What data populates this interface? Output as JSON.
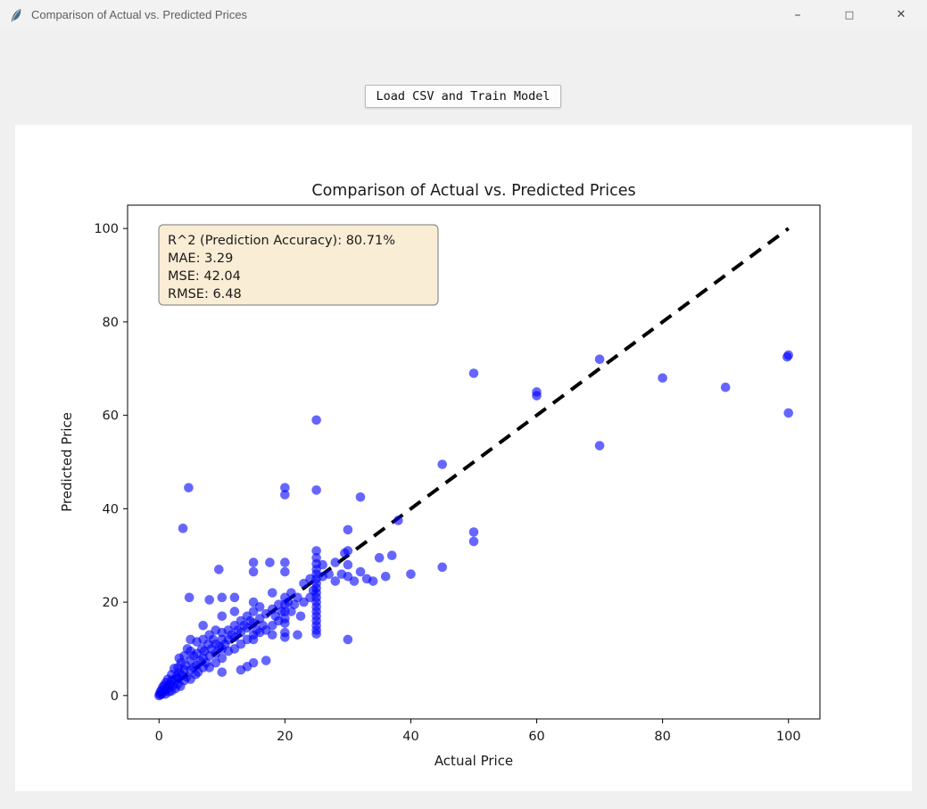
{
  "window": {
    "title": "Comparison of Actual vs. Predicted Prices",
    "controls": {
      "minimize": "–",
      "maximize": "□",
      "close": "✕"
    }
  },
  "toolbar": {
    "load_button_label": "Load CSV and Train Model"
  },
  "metrics": {
    "r2_percent": 80.71,
    "mae": 3.29,
    "mse": 42.04,
    "rmse": 6.48
  },
  "chart_data": {
    "type": "scatter",
    "title": "Comparison of Actual vs. Predicted Prices",
    "xlabel": "Actual Price",
    "ylabel": "Predicted Price",
    "xlim": [
      -5,
      105
    ],
    "ylim": [
      -5,
      105
    ],
    "xticks": [
      0,
      20,
      40,
      60,
      80,
      100
    ],
    "yticks": [
      0,
      20,
      40,
      60,
      80,
      100
    ],
    "grid": false,
    "point_color": "#0000ff",
    "point_alpha": 0.6,
    "reference_line": {
      "style": "dashed",
      "color": "#000000",
      "from": [
        0,
        0
      ],
      "to": [
        100,
        100
      ]
    },
    "annotation": {
      "lines": [
        "R^2 (Prediction Accuracy): 80.71%",
        "MAE: 3.29",
        "MSE: 42.04",
        "RMSE: 6.48"
      ],
      "bg": "#f5deb3",
      "border": "#8f8f8f"
    },
    "points": [
      [
        0,
        0
      ],
      [
        0.1,
        0.3
      ],
      [
        0.2,
        0.8
      ],
      [
        0.3,
        0.2
      ],
      [
        0.4,
        1.2
      ],
      [
        0.5,
        0.5
      ],
      [
        0.6,
        1.8
      ],
      [
        0.8,
        1
      ],
      [
        0.8,
        2.2
      ],
      [
        1,
        1.2
      ],
      [
        1,
        0.3
      ],
      [
        1.1,
        2.8
      ],
      [
        1.3,
        1.5
      ],
      [
        1.4,
        3.5
      ],
      [
        1.5,
        2
      ],
      [
        1.6,
        0.8
      ],
      [
        1.8,
        2.5
      ],
      [
        2,
        1
      ],
      [
        2,
        3.2
      ],
      [
        2,
        4.5
      ],
      [
        2.2,
        2.2
      ],
      [
        2.4,
        5.8
      ],
      [
        2.5,
        3.5
      ],
      [
        2.6,
        1.5
      ],
      [
        2.8,
        4.2
      ],
      [
        3,
        2.5
      ],
      [
        3,
        3.8
      ],
      [
        3,
        6
      ],
      [
        3.2,
        8
      ],
      [
        3.2,
        5
      ],
      [
        3.4,
        2
      ],
      [
        3.5,
        7
      ],
      [
        3.6,
        4.5
      ],
      [
        3.8,
        35.8
      ],
      [
        4,
        3.2
      ],
      [
        4,
        5.5
      ],
      [
        4,
        8.5
      ],
      [
        4.2,
        6.5
      ],
      [
        4.4,
        4
      ],
      [
        4.5,
        10
      ],
      [
        4.7,
        44.5
      ],
      [
        4.8,
        21
      ],
      [
        5,
        5.5
      ],
      [
        5,
        3.5
      ],
      [
        5,
        7.5
      ],
      [
        5,
        9.5
      ],
      [
        5,
        12
      ],
      [
        5.5,
        6
      ],
      [
        5.5,
        8.5
      ],
      [
        5.8,
        4.5
      ],
      [
        6,
        6.5
      ],
      [
        6,
        9
      ],
      [
        6,
        11.5
      ],
      [
        6.2,
        5
      ],
      [
        6.5,
        7.5
      ],
      [
        6.8,
        10
      ],
      [
        7,
        6
      ],
      [
        7,
        8
      ],
      [
        7,
        12
      ],
      [
        7,
        15
      ],
      [
        7.2,
        9.5
      ],
      [
        7.5,
        7
      ],
      [
        7.8,
        11
      ],
      [
        8,
        8.5
      ],
      [
        8,
        6
      ],
      [
        8,
        13
      ],
      [
        8,
        20.5
      ],
      [
        8.3,
        10
      ],
      [
        8.6,
        12
      ],
      [
        9,
        9
      ],
      [
        9,
        7
      ],
      [
        9,
        11
      ],
      [
        9,
        14
      ],
      [
        9.5,
        27
      ],
      [
        9.6,
        10.5
      ],
      [
        10,
        10
      ],
      [
        10,
        8
      ],
      [
        10,
        12
      ],
      [
        10,
        13.5
      ],
      [
        10,
        17
      ],
      [
        10,
        21
      ],
      [
        10,
        5
      ],
      [
        10.5,
        11
      ],
      [
        11,
        12
      ],
      [
        11,
        9.5
      ],
      [
        11,
        14
      ],
      [
        11.5,
        13
      ],
      [
        12,
        12.5
      ],
      [
        12,
        10
      ],
      [
        12,
        15
      ],
      [
        12,
        18
      ],
      [
        12,
        21
      ],
      [
        12.5,
        14
      ],
      [
        13,
        13.5
      ],
      [
        13,
        11
      ],
      [
        13,
        16
      ],
      [
        13,
        5.5
      ],
      [
        13.5,
        15
      ],
      [
        14,
        14.5
      ],
      [
        14,
        12
      ],
      [
        14,
        17
      ],
      [
        14,
        6.2
      ],
      [
        14.5,
        16
      ],
      [
        15,
        15.5
      ],
      [
        15,
        13
      ],
      [
        15,
        18
      ],
      [
        15,
        20
      ],
      [
        15,
        12
      ],
      [
        15,
        26.5
      ],
      [
        15,
        28.5
      ],
      [
        15,
        7
      ],
      [
        15.5,
        14
      ],
      [
        16,
        16.5
      ],
      [
        16,
        13.5
      ],
      [
        16,
        19
      ],
      [
        16.5,
        15
      ],
      [
        17,
        17.5
      ],
      [
        17,
        14
      ],
      [
        17,
        7.5
      ],
      [
        17.6,
        28.5
      ],
      [
        18,
        18.5
      ],
      [
        18,
        15
      ],
      [
        18,
        22
      ],
      [
        18,
        13
      ],
      [
        18.5,
        17
      ],
      [
        19,
        19.5
      ],
      [
        19,
        16
      ],
      [
        19.5,
        18
      ],
      [
        20,
        21
      ],
      [
        20,
        19.5
      ],
      [
        20,
        18
      ],
      [
        20,
        16.5
      ],
      [
        20,
        15.5
      ],
      [
        20,
        13.5
      ],
      [
        20,
        12.5
      ],
      [
        20,
        26.5
      ],
      [
        20,
        28.5
      ],
      [
        20,
        44.5
      ],
      [
        20,
        43
      ],
      [
        20.5,
        20
      ],
      [
        21,
        22
      ],
      [
        21,
        18
      ],
      [
        21.5,
        19.5
      ],
      [
        22,
        21
      ],
      [
        22,
        13
      ],
      [
        22.5,
        17
      ],
      [
        23,
        20
      ],
      [
        23,
        24
      ],
      [
        24,
        25
      ],
      [
        24,
        21
      ],
      [
        24.5,
        22.5
      ],
      [
        25,
        59
      ],
      [
        25,
        44
      ],
      [
        25,
        31
      ],
      [
        25,
        29.5
      ],
      [
        25,
        28.2
      ],
      [
        25,
        27
      ],
      [
        25,
        26
      ],
      [
        25,
        25
      ],
      [
        25,
        24
      ],
      [
        25,
        23
      ],
      [
        25,
        22
      ],
      [
        25,
        21
      ],
      [
        25,
        20
      ],
      [
        25,
        19
      ],
      [
        25,
        18
      ],
      [
        25,
        17
      ],
      [
        25,
        16
      ],
      [
        25,
        15
      ],
      [
        25,
        14
      ],
      [
        25,
        13.2
      ],
      [
        26,
        25.5
      ],
      [
        26,
        28
      ],
      [
        27,
        26
      ],
      [
        28,
        24.5
      ],
      [
        28,
        28.5
      ],
      [
        29,
        26
      ],
      [
        29.5,
        30.5
      ],
      [
        30,
        35.5
      ],
      [
        30,
        31
      ],
      [
        30,
        28
      ],
      [
        30,
        25.5
      ],
      [
        30,
        12
      ],
      [
        31,
        24.5
      ],
      [
        32,
        42.5
      ],
      [
        32,
        26.5
      ],
      [
        33,
        25
      ],
      [
        34,
        24.5
      ],
      [
        35,
        29.5
      ],
      [
        36,
        25.5
      ],
      [
        37,
        30
      ],
      [
        38,
        37.5
      ],
      [
        40,
        26
      ],
      [
        45,
        49.5
      ],
      [
        45,
        27.5
      ],
      [
        50,
        69
      ],
      [
        50,
        35
      ],
      [
        50,
        33
      ],
      [
        60,
        65
      ],
      [
        60,
        64.2
      ],
      [
        70,
        72
      ],
      [
        70,
        53.5
      ],
      [
        80,
        68
      ],
      [
        90,
        66
      ],
      [
        99.8,
        72.5
      ],
      [
        100,
        72.9
      ],
      [
        100,
        60.5
      ]
    ]
  }
}
